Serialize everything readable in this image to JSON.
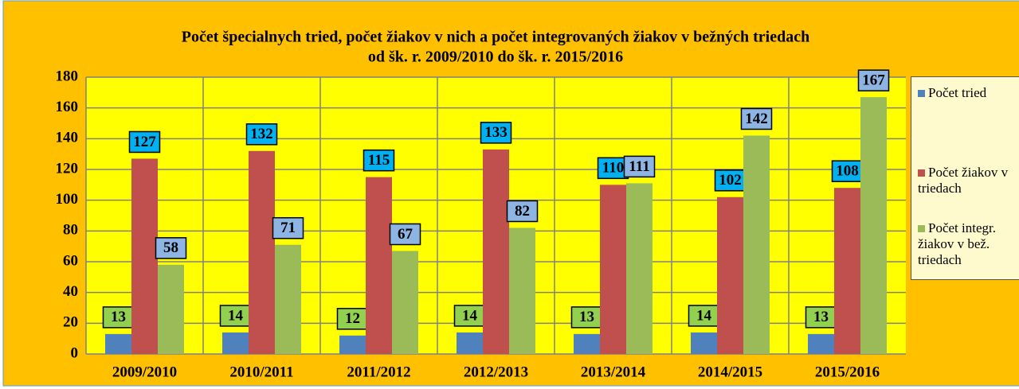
{
  "chart_data": {
    "type": "bar",
    "title": [
      "Počet špecialnych tried, počet žiakov v nich a počet integrovaných žiakov v bežných triedach",
      "od šk. r. 2009/2010 do šk. r. 2015/2016"
    ],
    "categories": [
      "2009/2010",
      "2010/2011",
      "2011/2012",
      "2012/2013",
      "2013/2014",
      "2014/2015",
      "2015/2016"
    ],
    "series": [
      {
        "name": "Počet tried",
        "color": "#4f81bd",
        "label_color": "#92d050",
        "values": [
          13,
          14,
          12,
          14,
          13,
          14,
          13
        ]
      },
      {
        "name": "Počet žiakov v triedach",
        "color": "#c0504d",
        "label_color": "#00b0f0",
        "values": [
          127,
          132,
          115,
          133,
          110,
          102,
          108
        ]
      },
      {
        "name": "Počet integr. žiakov v bež. triedach",
        "color": "#9bbb59",
        "label_color": "#8db4e2",
        "values": [
          58,
          71,
          67,
          82,
          111,
          142,
          167
        ]
      }
    ],
    "ylim": [
      0,
      180
    ],
    "yticks": [
      0,
      20,
      40,
      60,
      80,
      100,
      120,
      140,
      160,
      180
    ],
    "grid": true
  }
}
